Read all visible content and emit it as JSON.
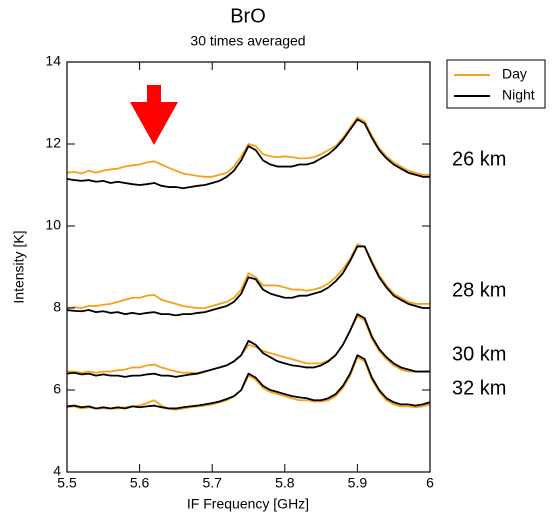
{
  "chart_data": {
    "type": "line",
    "title": "BrO",
    "subtitle": "30 times averaged",
    "x_label": "IF Frequency [GHz]",
    "y_label": "Intensity [K]",
    "xlim": [
      5.5,
      6
    ],
    "ylim": [
      4,
      14
    ],
    "xticks": [
      5.5,
      5.6,
      5.7,
      5.8,
      5.9,
      6
    ],
    "yticks": [
      4,
      6,
      8,
      10,
      12,
      14
    ],
    "legend": "outside-top-right",
    "altitude_labels": [
      "26 km",
      "28 km",
      "30 km",
      "32 km"
    ],
    "x": [
      5.5,
      5.51,
      5.52,
      5.53,
      5.54,
      5.55,
      5.56,
      5.57,
      5.58,
      5.59,
      5.6,
      5.61,
      5.62,
      5.63,
      5.64,
      5.65,
      5.66,
      5.67,
      5.68,
      5.69,
      5.7,
      5.71,
      5.72,
      5.73,
      5.74,
      5.75,
      5.76,
      5.77,
      5.78,
      5.79,
      5.8,
      5.81,
      5.82,
      5.83,
      5.84,
      5.85,
      5.86,
      5.87,
      5.88,
      5.89,
      5.9,
      5.91,
      5.92,
      5.93,
      5.94,
      5.95,
      5.96,
      5.97,
      5.98,
      5.99,
      6
    ],
    "series": [
      {
        "name": "Day",
        "color": "#f5a21b",
        "lines": [
          {
            "values": [
              11.3,
              11.32,
              11.28,
              11.35,
              11.3,
              11.35,
              11.38,
              11.4,
              11.45,
              11.48,
              11.5,
              11.55,
              11.58,
              11.5,
              11.42,
              11.35,
              11.28,
              11.25,
              11.22,
              11.2,
              11.2,
              11.25,
              11.3,
              11.45,
              11.7,
              12.0,
              11.95,
              11.75,
              11.7,
              11.68,
              11.7,
              11.68,
              11.65,
              11.65,
              11.68,
              11.75,
              11.85,
              11.95,
              12.15,
              12.4,
              12.65,
              12.55,
              12.2,
              11.9,
              11.7,
              11.55,
              11.45,
              11.35,
              11.3,
              11.25,
              11.25
            ]
          },
          {
            "values": [
              8.0,
              8.02,
              8.0,
              8.05,
              8.05,
              8.08,
              8.1,
              8.15,
              8.2,
              8.25,
              8.25,
              8.3,
              8.32,
              8.2,
              8.15,
              8.1,
              8.05,
              8.02,
              8.0,
              8.0,
              8.05,
              8.1,
              8.15,
              8.25,
              8.45,
              8.85,
              8.75,
              8.55,
              8.55,
              8.55,
              8.5,
              8.45,
              8.45,
              8.42,
              8.45,
              8.5,
              8.6,
              8.75,
              8.95,
              9.2,
              9.55,
              9.5,
              9.15,
              8.8,
              8.55,
              8.35,
              8.25,
              8.15,
              8.1,
              8.1,
              8.1
            ]
          },
          {
            "values": [
              6.45,
              6.45,
              6.42,
              6.45,
              6.42,
              6.45,
              6.45,
              6.48,
              6.5,
              6.55,
              6.55,
              6.6,
              6.62,
              6.55,
              6.5,
              6.45,
              6.42,
              6.42,
              6.42,
              6.45,
              6.5,
              6.55,
              6.6,
              6.7,
              6.85,
              7.1,
              7.05,
              6.95,
              6.9,
              6.85,
              6.8,
              6.75,
              6.7,
              6.65,
              6.65,
              6.65,
              6.72,
              6.85,
              7.1,
              7.45,
              7.8,
              7.7,
              7.25,
              6.95,
              6.75,
              6.6,
              6.5,
              6.45,
              6.45,
              6.45,
              6.45
            ]
          },
          {
            "values": [
              5.58,
              5.6,
              5.55,
              5.58,
              5.55,
              5.55,
              5.55,
              5.55,
              5.58,
              5.6,
              5.62,
              5.68,
              5.75,
              5.62,
              5.55,
              5.52,
              5.55,
              5.58,
              5.6,
              5.62,
              5.65,
              5.7,
              5.75,
              5.85,
              6.0,
              6.35,
              6.25,
              6.05,
              5.95,
              5.9,
              5.85,
              5.8,
              5.75,
              5.75,
              5.72,
              5.72,
              5.75,
              5.85,
              6.05,
              6.35,
              6.8,
              6.7,
              6.25,
              5.95,
              5.75,
              5.65,
              5.6,
              5.6,
              5.58,
              5.6,
              5.65
            ]
          }
        ]
      },
      {
        "name": "Night",
        "color": "#000000",
        "lines": [
          {
            "values": [
              11.15,
              11.12,
              11.1,
              11.12,
              11.08,
              11.1,
              11.05,
              11.08,
              11.05,
              11.02,
              11.0,
              11.02,
              11.05,
              10.98,
              10.95,
              10.95,
              10.92,
              10.95,
              10.98,
              11.0,
              11.05,
              11.1,
              11.2,
              11.35,
              11.6,
              11.95,
              11.85,
              11.6,
              11.5,
              11.45,
              11.45,
              11.45,
              11.5,
              11.5,
              11.55,
              11.65,
              11.75,
              11.9,
              12.1,
              12.35,
              12.6,
              12.5,
              12.15,
              11.85,
              11.65,
              11.5,
              11.4,
              11.3,
              11.25,
              11.2,
              11.2
            ]
          },
          {
            "values": [
              7.95,
              7.93,
              7.92,
              7.95,
              7.9,
              7.92,
              7.88,
              7.9,
              7.85,
              7.88,
              7.85,
              7.88,
              7.9,
              7.85,
              7.85,
              7.82,
              7.85,
              7.85,
              7.88,
              7.9,
              7.95,
              8.0,
              8.05,
              8.15,
              8.35,
              8.75,
              8.7,
              8.45,
              8.35,
              8.3,
              8.25,
              8.25,
              8.3,
              8.3,
              8.35,
              8.4,
              8.5,
              8.65,
              8.85,
              9.15,
              9.5,
              9.5,
              9.1,
              8.75,
              8.5,
              8.3,
              8.2,
              8.1,
              8.05,
              8.0,
              8.0
            ]
          },
          {
            "values": [
              6.4,
              6.42,
              6.38,
              6.4,
              6.35,
              6.38,
              6.35,
              6.35,
              6.32,
              6.35,
              6.35,
              6.38,
              6.4,
              6.35,
              6.35,
              6.32,
              6.35,
              6.38,
              6.4,
              6.45,
              6.5,
              6.55,
              6.6,
              6.7,
              6.85,
              7.2,
              7.1,
              6.9,
              6.8,
              6.7,
              6.65,
              6.6,
              6.58,
              6.55,
              6.55,
              6.6,
              6.7,
              6.85,
              7.1,
              7.45,
              7.85,
              7.75,
              7.3,
              7.0,
              6.8,
              6.65,
              6.55,
              6.5,
              6.45,
              6.45,
              6.45
            ]
          },
          {
            "values": [
              5.6,
              5.62,
              5.58,
              5.6,
              5.55,
              5.58,
              5.55,
              5.58,
              5.55,
              5.6,
              5.58,
              5.6,
              5.62,
              5.58,
              5.55,
              5.55,
              5.58,
              5.6,
              5.62,
              5.65,
              5.68,
              5.72,
              5.78,
              5.85,
              6.0,
              6.4,
              6.3,
              6.1,
              6.0,
              5.95,
              5.9,
              5.85,
              5.82,
              5.8,
              5.75,
              5.75,
              5.8,
              5.9,
              6.1,
              6.4,
              6.85,
              6.75,
              6.3,
              6.0,
              5.8,
              5.7,
              5.65,
              5.65,
              5.62,
              5.65,
              5.7
            ]
          }
        ]
      }
    ]
  }
}
